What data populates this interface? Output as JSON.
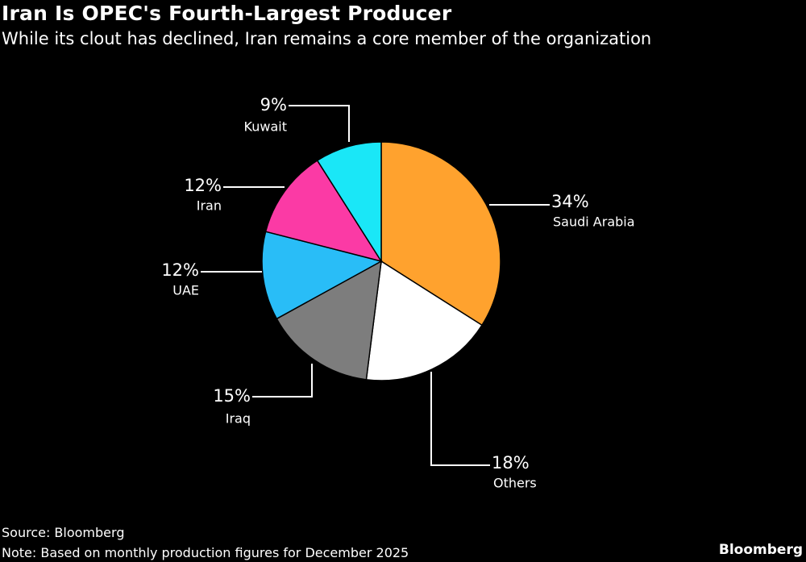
{
  "title": "Iran Is OPEC's Fourth-Largest Producer",
  "subtitle": "While its clout has declined, Iran remains a core member of the organization",
  "source": "Source: Bloomberg",
  "note": "Note: Based on monthly production figures for December 2025",
  "brand": "Bloomberg",
  "chart_data": {
    "type": "pie",
    "title": "Iran Is OPEC's Fourth-Largest Producer",
    "subtitle": "While its clout has declined, Iran remains a core member of the organization",
    "start_angle": "12 o'clock",
    "direction": "clockwise",
    "slices": [
      {
        "label": "Saudi Arabia",
        "value": 34,
        "value_label": "34%",
        "color": "#ffa22e"
      },
      {
        "label": "Others",
        "value": 18,
        "value_label": "18%",
        "color": "#ffffff"
      },
      {
        "label": "Iraq",
        "value": 15,
        "value_label": "15%",
        "color": "#7d7d7d"
      },
      {
        "label": "UAE",
        "value": 12,
        "value_label": "12%",
        "color": "#29bdf7"
      },
      {
        "label": "Iran",
        "value": 12,
        "value_label": "12%",
        "color": "#fb3aa5"
      },
      {
        "label": "Kuwait",
        "value": 9,
        "value_label": "9%",
        "color": "#1ae7f7"
      }
    ]
  }
}
